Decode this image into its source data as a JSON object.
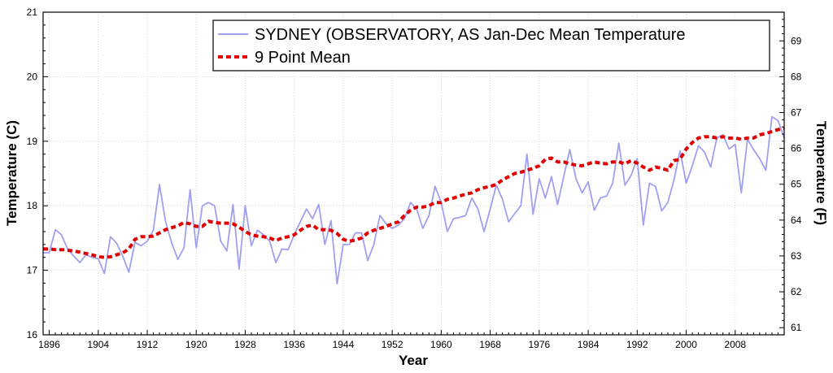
{
  "chart_data": {
    "type": "line",
    "xlabel": "Year",
    "ylabel_left": "Temperature (C)",
    "ylabel_right": "Temperature (F)",
    "xlim": [
      1895,
      2016
    ],
    "ylim_left": [
      16,
      21
    ],
    "ylim_right_printed_ticks": [
      61,
      62,
      63,
      64,
      65,
      66,
      67,
      68,
      69
    ],
    "x_ticks": [
      1896,
      1904,
      1912,
      1920,
      1928,
      1936,
      1944,
      1952,
      1960,
      1968,
      1976,
      1984,
      1992,
      2000,
      2008
    ],
    "y_ticks_left": [
      16,
      17,
      18,
      19,
      20,
      21
    ],
    "grid": true,
    "legend_position": "top-right",
    "series": [
      {
        "name": "SYDNEY (OBSERVATORY, AS  Jan-Dec  Mean Temperature",
        "color": "#a0a0f0",
        "style": "solid",
        "x": [
          1895,
          1896,
          1897,
          1898,
          1899,
          1900,
          1901,
          1902,
          1903,
          1904,
          1905,
          1906,
          1907,
          1908,
          1909,
          1910,
          1911,
          1912,
          1913,
          1914,
          1915,
          1916,
          1917,
          1918,
          1919,
          1920,
          1921,
          1922,
          1923,
          1924,
          1925,
          1926,
          1927,
          1928,
          1929,
          1930,
          1931,
          1932,
          1933,
          1934,
          1935,
          1936,
          1937,
          1938,
          1939,
          1940,
          1941,
          1942,
          1943,
          1944,
          1945,
          1946,
          1947,
          1948,
          1949,
          1950,
          1951,
          1952,
          1953,
          1954,
          1955,
          1956,
          1957,
          1958,
          1959,
          1960,
          1961,
          1962,
          1963,
          1964,
          1965,
          1966,
          1967,
          1968,
          1969,
          1970,
          1971,
          1972,
          1973,
          1974,
          1975,
          1976,
          1977,
          1978,
          1979,
          1980,
          1981,
          1982,
          1983,
          1984,
          1985,
          1986,
          1987,
          1988,
          1989,
          1990,
          1991,
          1992,
          1993,
          1994,
          1995,
          1996,
          1997,
          1998,
          1999,
          2000,
          2001,
          2002,
          2003,
          2004,
          2005,
          2006,
          2007,
          2008,
          2009,
          2010,
          2011,
          2012,
          2013,
          2014,
          2015,
          2016
        ],
        "values": [
          17.27,
          17.27,
          17.63,
          17.55,
          17.33,
          17.22,
          17.12,
          17.24,
          17.2,
          17.18,
          16.95,
          17.52,
          17.42,
          17.22,
          16.97,
          17.43,
          17.38,
          17.45,
          17.62,
          18.33,
          17.75,
          17.42,
          17.17,
          17.35,
          18.25,
          17.35,
          18.0,
          18.05,
          18.0,
          17.45,
          17.3,
          18.02,
          17.02,
          18.0,
          17.38,
          17.62,
          17.55,
          17.45,
          17.12,
          17.33,
          17.32,
          17.55,
          17.75,
          17.95,
          17.8,
          18.02,
          17.4,
          17.77,
          16.79,
          17.4,
          17.4,
          17.58,
          17.58,
          17.15,
          17.4,
          17.85,
          17.72,
          17.65,
          17.7,
          17.8,
          18.05,
          17.95,
          17.65,
          17.85,
          18.3,
          18.05,
          17.6,
          17.8,
          17.82,
          17.85,
          18.12,
          17.95,
          17.6,
          17.95,
          18.32,
          18.1,
          17.75,
          17.88,
          18.0,
          18.8,
          17.87,
          18.42,
          18.12,
          18.45,
          18.02,
          18.45,
          18.87,
          18.42,
          18.2,
          18.37,
          17.93,
          18.12,
          18.15,
          18.35,
          18.97,
          18.32,
          18.47,
          18.73,
          17.7,
          18.35,
          18.3,
          17.92,
          18.05,
          18.4,
          18.85,
          18.35,
          18.62,
          18.93,
          18.83,
          18.6,
          19.05,
          19.1,
          18.88,
          18.95,
          18.2,
          19.03,
          18.87,
          18.73,
          18.55,
          19.38,
          19.32,
          19.05
        ]
      },
      {
        "name": "9 Point Mean",
        "color": "#e00000",
        "style": "dashed",
        "x": [
          1895,
          1896,
          1897,
          1898,
          1899,
          1900,
          1901,
          1902,
          1903,
          1904,
          1905,
          1906,
          1907,
          1908,
          1909,
          1910,
          1911,
          1912,
          1913,
          1914,
          1915,
          1916,
          1917,
          1918,
          1919,
          1920,
          1921,
          1922,
          1923,
          1924,
          1925,
          1926,
          1927,
          1928,
          1929,
          1930,
          1931,
          1932,
          1933,
          1934,
          1935,
          1936,
          1937,
          1938,
          1939,
          1940,
          1941,
          1942,
          1943,
          1944,
          1945,
          1946,
          1947,
          1948,
          1949,
          1950,
          1951,
          1952,
          1953,
          1954,
          1955,
          1956,
          1957,
          1958,
          1959,
          1960,
          1961,
          1962,
          1963,
          1964,
          1965,
          1966,
          1967,
          1968,
          1969,
          1970,
          1971,
          1972,
          1973,
          1974,
          1975,
          1976,
          1977,
          1978,
          1979,
          1980,
          1981,
          1982,
          1983,
          1984,
          1985,
          1986,
          1987,
          1988,
          1989,
          1990,
          1991,
          1992,
          1993,
          1994,
          1995,
          1996,
          1997,
          1998,
          1999,
          2000,
          2001,
          2002,
          2003,
          2004,
          2005,
          2006,
          2007,
          2008,
          2009,
          2010,
          2011,
          2012,
          2013,
          2014,
          2015,
          2016
        ],
        "values": [
          17.33,
          17.33,
          17.32,
          17.32,
          17.31,
          17.3,
          17.28,
          17.26,
          17.24,
          17.21,
          17.2,
          17.21,
          17.24,
          17.27,
          17.33,
          17.48,
          17.52,
          17.52,
          17.53,
          17.58,
          17.63,
          17.66,
          17.69,
          17.74,
          17.72,
          17.68,
          17.68,
          17.76,
          17.74,
          17.73,
          17.73,
          17.72,
          17.67,
          17.6,
          17.55,
          17.53,
          17.52,
          17.5,
          17.46,
          17.5,
          17.52,
          17.55,
          17.62,
          17.68,
          17.7,
          17.63,
          17.63,
          17.62,
          17.57,
          17.48,
          17.45,
          17.47,
          17.5,
          17.58,
          17.62,
          17.65,
          17.68,
          17.72,
          17.75,
          17.85,
          17.93,
          17.98,
          17.98,
          18.0,
          18.05,
          18.05,
          18.1,
          18.12,
          18.15,
          18.18,
          18.2,
          18.25,
          18.28,
          18.3,
          18.33,
          18.4,
          18.45,
          18.5,
          18.52,
          18.55,
          18.58,
          18.62,
          18.72,
          18.74,
          18.68,
          18.68,
          18.65,
          18.63,
          18.62,
          18.65,
          18.68,
          18.66,
          18.65,
          18.68,
          18.68,
          18.65,
          18.7,
          18.66,
          18.6,
          18.55,
          18.6,
          18.58,
          18.55,
          18.7,
          18.72,
          18.88,
          18.98,
          19.05,
          19.07,
          19.07,
          19.05,
          19.07,
          19.05,
          19.05,
          19.03,
          19.05,
          19.05,
          19.1,
          19.12,
          19.15,
          19.18,
          19.2
        ]
      }
    ]
  }
}
